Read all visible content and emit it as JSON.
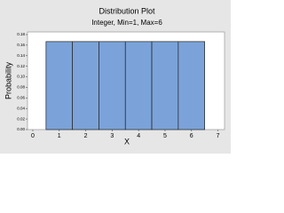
{
  "chart_data": {
    "type": "bar",
    "title": "Distribution Plot",
    "subtitle": "Integer, Min=1, Max=6",
    "x_label": "X",
    "y_label": "Probability",
    "x": [
      1,
      2,
      3,
      4,
      5,
      6
    ],
    "values": [
      0.1667,
      0.1667,
      0.1667,
      0.1667,
      0.1667,
      0.1667
    ],
    "color": "#7ba3d9",
    "xlim": [
      -0.2,
      7.25
    ],
    "xticks": [
      0,
      1,
      2,
      3,
      4,
      5,
      6,
      7
    ],
    "ylim": [
      0,
      0.185
    ],
    "yticks": [
      {
        "value": 0,
        "label": "0.00"
      },
      {
        "value": 0.02,
        "label": "0.02"
      },
      {
        "value": 0.04,
        "label": "0.04"
      },
      {
        "value": 0.06,
        "label": "0.06"
      },
      {
        "value": 0.08,
        "label": "0.08"
      },
      {
        "value": 0.1,
        "label": "0.10"
      },
      {
        "value": 0.12,
        "label": "0.12"
      },
      {
        "value": 0.14,
        "label": "0.14"
      },
      {
        "value": 0.16,
        "label": "0.16"
      },
      {
        "value": 0.18,
        "label": "0.18"
      }
    ]
  }
}
